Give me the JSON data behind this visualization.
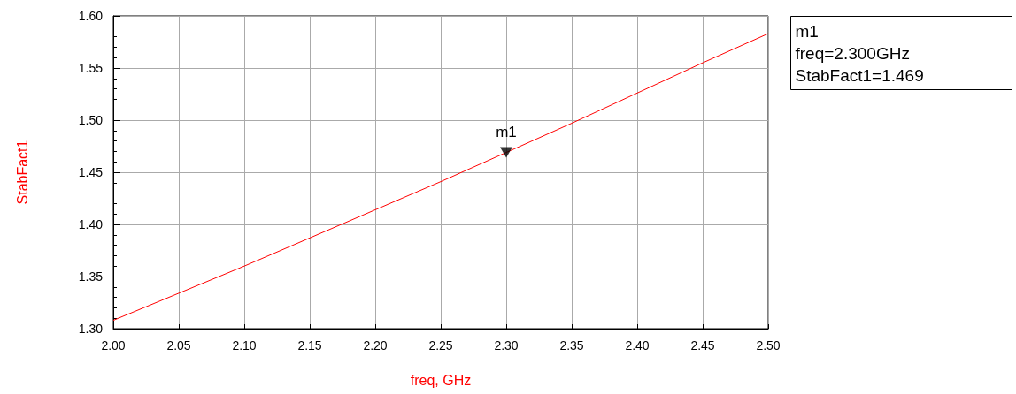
{
  "chart_data": {
    "type": "line",
    "xlabel": "freq, GHz",
    "ylabel": "StabFact1",
    "x": [
      2.0,
      2.05,
      2.1,
      2.15,
      2.2,
      2.25,
      2.3,
      2.35,
      2.4,
      2.45,
      2.5
    ],
    "series": [
      {
        "color": "#ff0000",
        "values": [
          1.308,
          1.334,
          1.36,
          1.387,
          1.414,
          1.441,
          1.469,
          1.497,
          1.526,
          1.555,
          1.583
        ]
      },
      {
        "type": "scatter",
        "x": [
          2.3
        ],
        "values": [
          1.469
        ],
        "color": "#000000",
        "marker": "triangle"
      }
    ],
    "xlim": [
      2.0,
      2.5
    ],
    "xticks": [
      {
        "value": 2.0,
        "label": "2.00"
      },
      2.05,
      {
        "value": 2.1,
        "label": "2.10"
      },
      2.15,
      {
        "value": 2.2,
        "label": "2.20"
      },
      2.25,
      {
        "value": 2.3,
        "label": "2.30"
      },
      2.35,
      {
        "value": 2.4,
        "label": "2.40"
      },
      2.45,
      {
        "value": 2.5,
        "label": "2.50"
      }
    ],
    "ylim": [
      1.3,
      1.6
    ],
    "yticks": [
      {
        "value": 1.3,
        "label": "1.30"
      },
      1.35,
      {
        "value": 1.4,
        "label": "1.40"
      },
      1.45,
      {
        "value": 1.5,
        "label": "1.50"
      },
      1.55,
      {
        "value": 1.6,
        "label": "1.60"
      }
    ],
    "grid": true,
    "marker": "none",
    "line_style": "solid",
    "annotations": [
      {
        "text": "m1",
        "x": 2.3,
        "y": 1.469
      },
      "m1",
      "freq=2.300GHz",
      "StabFact1=1.469"
    ]
  }
}
